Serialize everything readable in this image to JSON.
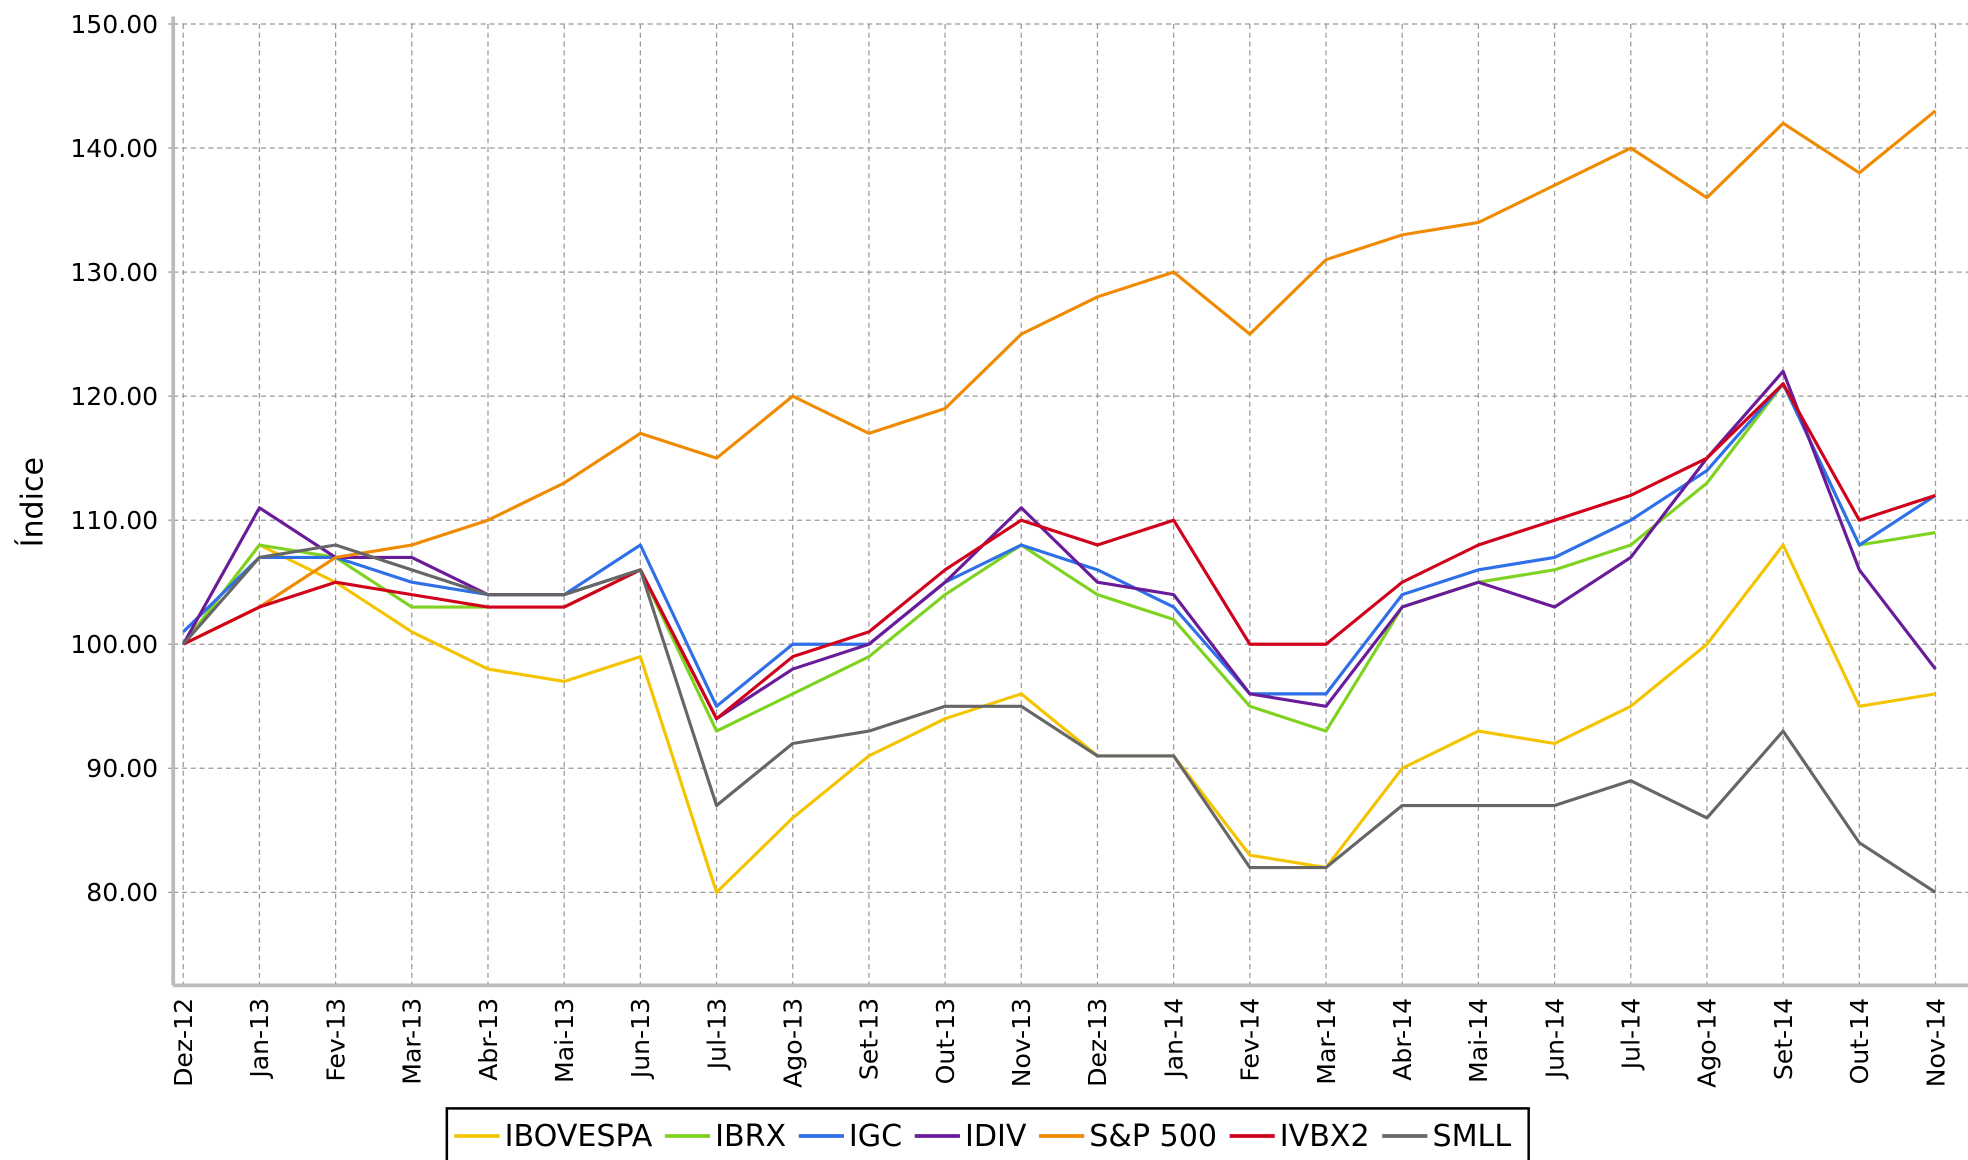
{
  "chart_data": {
    "type": "line",
    "y_label": "Índice",
    "categories": [
      "Dez-12",
      "Jan-13",
      "Fev-13",
      "Mar-13",
      "Abr-13",
      "Mai-13",
      "Jun-13",
      "Jul-13",
      "Ago-13",
      "Set-13",
      "Out-13",
      "Nov-13",
      "Dez-13",
      "Jan-14",
      "Fev-14",
      "Mar-14",
      "Abr-14",
      "Mai-14",
      "Jun-14",
      "Jul-14",
      "Ago-14",
      "Set-14",
      "Out-14",
      "Nov-14"
    ],
    "series": [
      {
        "name": "IBOVESPA",
        "color": "#f5c400",
        "values": [
          100,
          108,
          105,
          101,
          98,
          97,
          99,
          80,
          86,
          91,
          94,
          96,
          91,
          91,
          83,
          82,
          90,
          93,
          92,
          95,
          100,
          108,
          95,
          96
        ]
      },
      {
        "name": "IBRX",
        "color": "#7ed321",
        "values": [
          100,
          108,
          107,
          103,
          103,
          103,
          106,
          93,
          96,
          99,
          104,
          108,
          104,
          102,
          95,
          93,
          103,
          105,
          106,
          108,
          113,
          121,
          108,
          109
        ]
      },
      {
        "name": "IGC",
        "color": "#2f6fe8",
        "values": [
          101,
          107,
          107,
          105,
          104,
          104,
          108,
          95,
          100,
          100,
          105,
          108,
          106,
          103,
          96,
          96,
          104,
          106,
          107,
          110,
          114,
          121,
          108,
          112
        ]
      },
      {
        "name": "IDIV",
        "color": "#6a1b9a",
        "values": [
          100,
          111,
          107,
          107,
          104,
          104,
          106,
          94,
          98,
          100,
          105,
          111,
          105,
          104,
          96,
          95,
          103,
          105,
          103,
          107,
          115,
          122,
          106,
          98
        ]
      },
      {
        "name": "S&P 500",
        "color": "#f08a00",
        "values": [
          100,
          103,
          107,
          108,
          110,
          113,
          117,
          115,
          120,
          117,
          119,
          125,
          128,
          130,
          125,
          131,
          133,
          134,
          137,
          140,
          136,
          142,
          138,
          143
        ]
      },
      {
        "name": "IVBX2",
        "color": "#d0021b",
        "values": [
          100,
          103,
          105,
          104,
          103,
          103,
          106,
          94,
          99,
          101,
          106,
          110,
          108,
          110,
          100,
          100,
          105,
          108,
          110,
          112,
          115,
          121,
          110,
          112
        ]
      },
      {
        "name": "SMLL",
        "color": "#666666",
        "values": [
          100,
          107,
          108,
          106,
          104,
          104,
          106,
          87,
          92,
          93,
          95,
          95,
          91,
          91,
          82,
          82,
          87,
          87,
          87,
          89,
          86,
          93,
          84,
          80
        ]
      }
    ],
    "ylim": [
      72.5,
      150
    ],
    "yticks": [
      {
        "value": 80,
        "label": "80.00"
      },
      {
        "value": 90,
        "label": "90.00"
      },
      {
        "value": 100,
        "label": "100.00"
      },
      {
        "value": 110,
        "label": "110.00"
      },
      {
        "value": 120,
        "label": "120.00"
      },
      {
        "value": 130,
        "label": "130.00"
      },
      {
        "value": 140,
        "label": "140.00"
      },
      {
        "value": 150,
        "label": "150.00"
      }
    ],
    "grid": true,
    "legend": "bottom"
  }
}
